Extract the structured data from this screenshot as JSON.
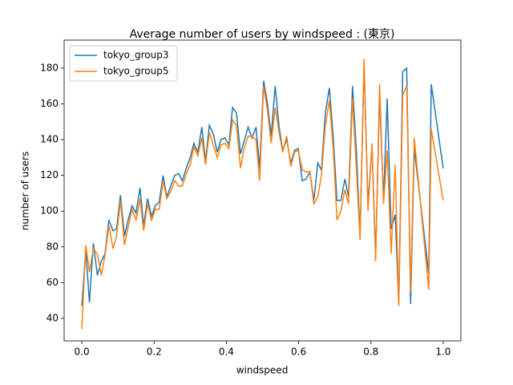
{
  "chart_data": {
    "type": "line",
    "title": "Average number of users by windspeed : (東京)",
    "xlabel": "windspeed",
    "ylabel": "number of users",
    "x": [
      0,
      0.011,
      0.021,
      0.032,
      0.043,
      0.054,
      0.064,
      0.075,
      0.086,
      0.096,
      0.107,
      0.118,
      0.128,
      0.139,
      0.15,
      0.161,
      0.171,
      0.182,
      0.193,
      0.203,
      0.214,
      0.225,
      0.235,
      0.246,
      0.257,
      0.268,
      0.278,
      0.289,
      0.3,
      0.31,
      0.321,
      0.332,
      0.342,
      0.353,
      0.364,
      0.375,
      0.385,
      0.396,
      0.407,
      0.417,
      0.428,
      0.439,
      0.449,
      0.46,
      0.471,
      0.482,
      0.492,
      0.503,
      0.514,
      0.524,
      0.535,
      0.546,
      0.556,
      0.567,
      0.578,
      0.589,
      0.599,
      0.61,
      0.621,
      0.631,
      0.642,
      0.653,
      0.663,
      0.674,
      0.685,
      0.696,
      0.706,
      0.717,
      0.728,
      0.738,
      0.749,
      0.76,
      0.77,
      0.781,
      0.792,
      0.803,
      0.813,
      0.824,
      0.835,
      0.845,
      0.856,
      0.867,
      0.877,
      0.888,
      0.899,
      0.91,
      0.92,
      0.96,
      0.967,
      1.0
    ],
    "series": [
      {
        "name": "tokyo_group3",
        "color": "#1f77b4",
        "values": [
          47,
          78,
          49,
          82,
          64,
          72,
          76,
          95,
          89,
          90,
          109,
          86,
          95,
          103,
          99,
          113,
          92,
          107,
          97,
          103,
          105,
          120,
          108,
          114,
          120,
          121,
          117,
          124,
          130,
          138,
          133,
          147,
          128,
          148,
          143,
          133,
          140,
          141,
          137,
          158,
          155,
          132,
          139,
          147,
          141,
          147,
          124,
          173,
          160,
          142,
          170,
          147,
          134,
          140,
          127,
          134,
          135,
          117,
          118,
          122,
          106,
          127,
          123,
          155,
          169,
          140,
          106,
          106,
          118,
          108,
          170,
          133,
          86,
          182,
          104,
          136,
          74,
          165,
          106,
          163,
          90,
          98,
          48,
          178,
          180,
          48,
          135,
          65,
          171,
          124
        ]
      },
      {
        "name": "tokyo_group5",
        "color": "#ff7f0e",
        "values": [
          34,
          81,
          66,
          79,
          76,
          64,
          75,
          92,
          79,
          86,
          106,
          81,
          91,
          101,
          95,
          107,
          89,
          104,
          95,
          101,
          101,
          117,
          107,
          111,
          117,
          114,
          114,
          121,
          126,
          136,
          131,
          141,
          126,
          144,
          137,
          130,
          137,
          138,
          135,
          151,
          148,
          124,
          135,
          142,
          142,
          140,
          117,
          170,
          156,
          138,
          158,
          144,
          133,
          142,
          125,
          133,
          134,
          123,
          122,
          122,
          104,
          108,
          120,
          148,
          162,
          134,
          95,
          100,
          112,
          104,
          163,
          123,
          84,
          185,
          100,
          138,
          72,
          171,
          104,
          134,
          76,
          126,
          47,
          165,
          170,
          55,
          141,
          56,
          146,
          106
        ]
      }
    ],
    "xlim": [
      -0.049,
      1.049
    ],
    "ylim": [
      27.4,
      195.7
    ],
    "xticks": [
      {
        "value": 0,
        "label": "0.0"
      },
      {
        "value": 0.2,
        "label": "0.2"
      },
      {
        "value": 0.4,
        "label": "0.4"
      },
      {
        "value": 0.6,
        "label": "0.6"
      },
      {
        "value": 0.8,
        "label": "0.8"
      },
      {
        "value": 1,
        "label": "1.0"
      }
    ],
    "yticks": [
      40,
      60,
      80,
      100,
      120,
      140,
      160,
      180
    ],
    "legend": "upper left"
  }
}
